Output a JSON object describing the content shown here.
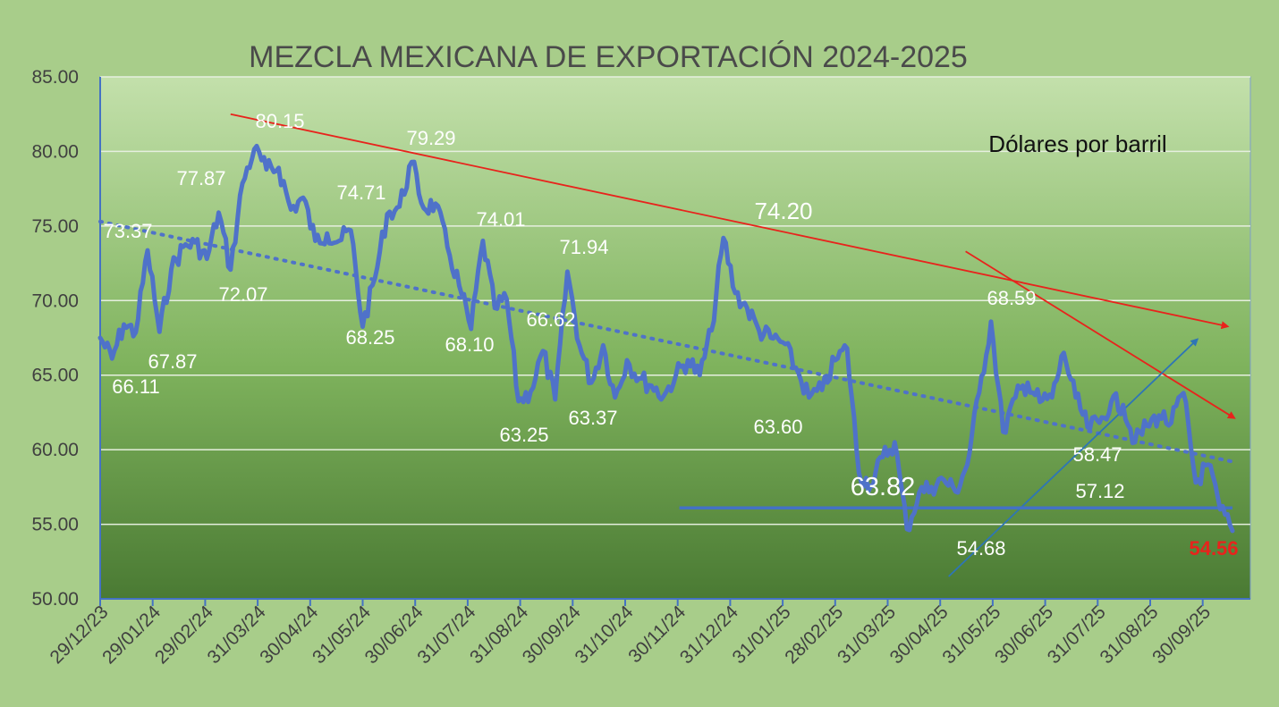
{
  "chart_data": {
    "type": "line",
    "title": "MEZCLA MEXICANA DE EXPORTACIÓN 2024-2025",
    "subtitle": "Dólares por barril",
    "xlabel": "",
    "ylabel": "",
    "ylim": [
      50,
      85
    ],
    "y_ticks": [
      "50.00",
      "55.00",
      "60.00",
      "65.00",
      "70.00",
      "75.00",
      "80.00",
      "85.00"
    ],
    "x_ticks": [
      "29/12/23",
      "29/01/24",
      "29/02/24",
      "31/03/24",
      "30/04/24",
      "31/05/24",
      "30/06/24",
      "31/07/24",
      "31/08/24",
      "30/09/24",
      "31/10/24",
      "30/11/24",
      "31/12/24",
      "31/01/25",
      "28/02/25",
      "31/03/25",
      "30/04/25",
      "31/05/25",
      "30/06/25",
      "31/07/25",
      "31/08/25",
      "30/09/25"
    ],
    "grid": "horizontal",
    "colors": {
      "series": "#4f72c9",
      "resistance": "#e8231c",
      "support_up": "#2e75b6",
      "support_flat": "#4472c4",
      "trend": "#4f72c9",
      "last_value": "#e8231c",
      "label": "#ffffff",
      "title": "#4a4a4a"
    },
    "series": [
      {
        "x": [
          "29/12/23",
          "05/01/24",
          "12/01/24",
          "19/01/24",
          "26/01/24",
          "02/02/24",
          "09/02/24",
          "16/02/24",
          "23/02/24",
          "01/03/24",
          "08/03/24",
          "15/03/24",
          "22/03/24",
          "29/03/24",
          "05/04/24",
          "12/04/24",
          "19/04/24",
          "26/04/24",
          "03/05/24",
          "10/05/24",
          "17/05/24",
          "24/05/24",
          "31/05/24",
          "07/06/24",
          "14/06/24",
          "21/06/24",
          "28/06/24",
          "05/07/24",
          "12/07/24",
          "19/07/24",
          "26/07/24",
          "02/08/24",
          "09/08/24",
          "16/08/24",
          "23/08/24",
          "30/08/24",
          "06/09/24",
          "13/09/24",
          "20/09/24",
          "27/09/24",
          "04/10/24",
          "11/10/24",
          "18/10/24",
          "25/10/24",
          "01/11/24",
          "08/11/24",
          "15/11/24",
          "22/11/24",
          "29/11/24",
          "06/12/24",
          "13/12/24",
          "20/12/24",
          "27/12/24",
          "03/01/25",
          "10/01/25",
          "17/01/25",
          "24/01/25",
          "31/01/25",
          "07/02/25",
          "14/02/25",
          "21/02/25",
          "28/02/25",
          "07/03/25",
          "14/03/25",
          "21/03/25",
          "28/03/25",
          "04/04/25",
          "11/04/25",
          "18/04/25",
          "25/04/25",
          "02/05/25",
          "09/05/25",
          "16/05/25",
          "23/05/25",
          "30/05/25",
          "06/06/25",
          "13/06/25",
          "20/06/25",
          "27/06/25",
          "04/07/25",
          "11/07/25",
          "18/07/25",
          "25/07/25",
          "01/08/25",
          "08/08/25",
          "15/08/25",
          "22/08/25",
          "29/08/25",
          "05/09/25",
          "12/09/25",
          "19/09/25",
          "26/09/25",
          "03/10/25",
          "10/10/25",
          "17/10/25"
        ],
        "values": [
          67.5,
          66.11,
          68.4,
          67.87,
          73.37,
          67.9,
          72.1,
          73.6,
          73.9,
          72.8,
          75.9,
          72.07,
          77.87,
          80.15,
          78.8,
          78.9,
          76.1,
          76.9,
          74.0,
          74.5,
          74.0,
          74.71,
          68.25,
          71.5,
          75.8,
          76.3,
          79.29,
          76.2,
          76.5,
          73.6,
          71.0,
          68.1,
          74.01,
          69.5,
          70.1,
          63.25,
          63.9,
          66.62,
          63.37,
          71.94,
          67.0,
          64.5,
          67.0,
          63.5,
          66.0,
          64.8,
          64.3,
          63.6,
          65.0,
          66.0,
          65.0,
          68.0,
          74.2,
          70.5,
          69.5,
          68.0,
          67.5,
          67.2,
          65.5,
          63.5,
          64.0,
          66.0,
          66.8,
          58.47,
          57.6,
          59.5,
          60.5,
          54.68,
          57.12,
          57.5,
          58.0,
          57.2,
          59.0,
          63.82,
          68.59,
          61.2,
          63.5,
          64.5,
          63.2,
          63.5,
          66.5,
          63.5,
          61.5,
          61.8,
          63.2,
          63.0,
          60.5,
          61.6,
          62.3,
          61.8,
          63.8,
          57.8,
          59.0,
          56.0,
          54.56
        ]
      }
    ],
    "data_labels": [
      {
        "text": "73.37"
      },
      {
        "text": "66.11"
      },
      {
        "text": "67.87"
      },
      {
        "text": "77.87"
      },
      {
        "text": "80.15"
      },
      {
        "text": "72.07"
      },
      {
        "text": "74.71"
      },
      {
        "text": "68.25"
      },
      {
        "text": "79.29"
      },
      {
        "text": "68.10"
      },
      {
        "text": "74.01"
      },
      {
        "text": "63.25"
      },
      {
        "text": "66.62"
      },
      {
        "text": "71.94"
      },
      {
        "text": "63.37"
      },
      {
        "text": "74.20"
      },
      {
        "text": "63.60"
      },
      {
        "text": "63.82"
      },
      {
        "text": "54.68"
      },
      {
        "text": "68.59"
      },
      {
        "text": "58.47"
      },
      {
        "text": "57.12"
      },
      {
        "text": "54.56"
      }
    ],
    "trendlines": [
      {
        "name": "tendencia-lineal",
        "style": "dotted",
        "from": {
          "x": "29/12/23",
          "y": 75.3
        },
        "to": {
          "x": "17/10/25",
          "y": 59.2
        }
      },
      {
        "name": "resistencia-1",
        "style": "arrow",
        "from": {
          "x": "15/03/24",
          "y": 82.5
        },
        "to": {
          "x": "13/10/25",
          "y": 68.3
        }
      },
      {
        "name": "resistencia-2",
        "style": "arrow",
        "from": {
          "x": "15/05/25",
          "y": 73.3
        },
        "to": {
          "x": "17/10/25",
          "y": 62.2
        }
      },
      {
        "name": "soporte-alcista",
        "style": "arrow",
        "from": {
          "x": "05/05/25",
          "y": 51.5
        },
        "to": {
          "x": "26/09/25",
          "y": 67.3
        }
      },
      {
        "name": "soporte-horizontal",
        "style": "line",
        "from": {
          "x": "01/12/24",
          "y": 56.1
        },
        "to": {
          "x": "17/10/25",
          "y": 56.1
        }
      }
    ]
  }
}
